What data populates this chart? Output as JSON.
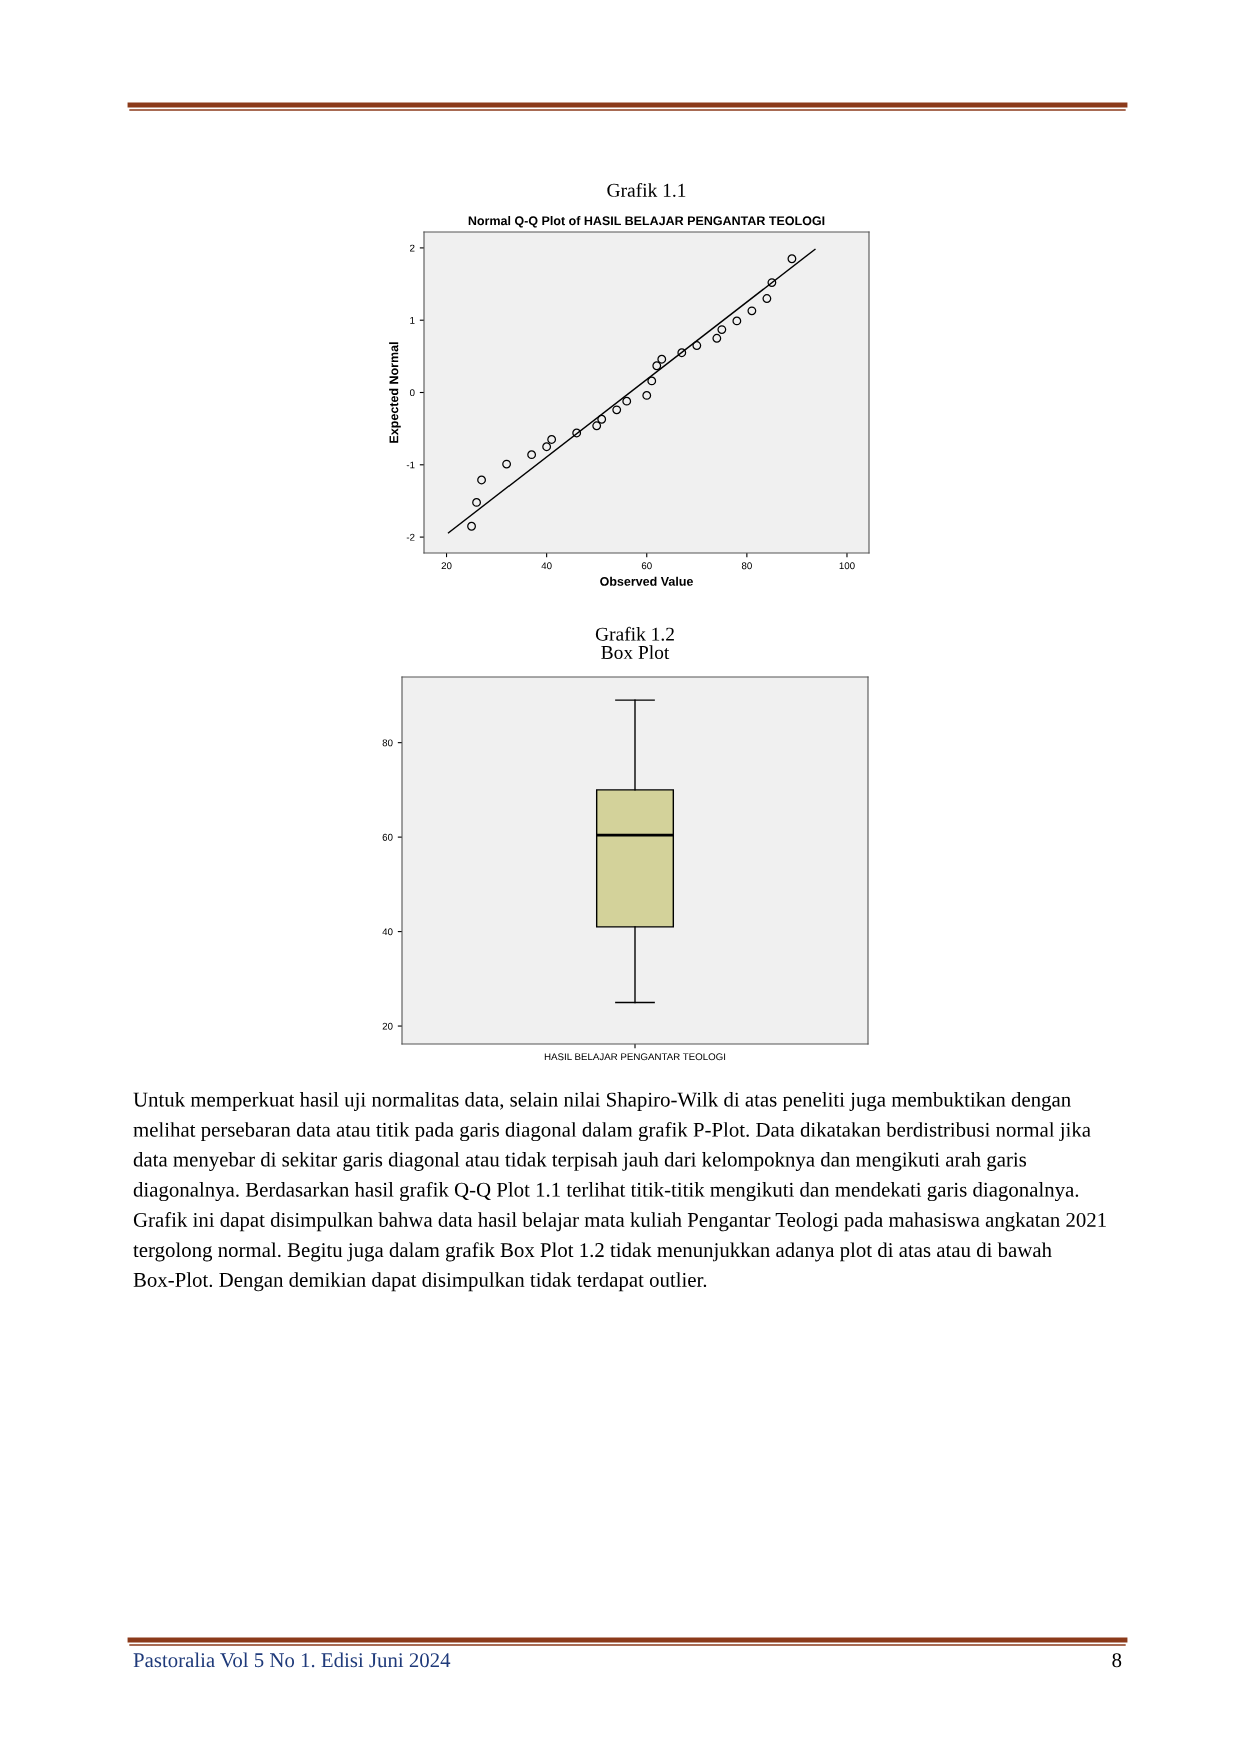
{
  "chart_data": [
    {
      "type": "scatter",
      "title": "Grafik 1.1",
      "subtitle": "Normal Q-Q Plot of HASIL BELAJAR PENGANTAR TEOLOGI",
      "xlabel": "Observed Value",
      "ylabel": "Expected Normal",
      "xlim": [
        15.5,
        104.4
      ],
      "ylim": [
        -2.22,
        2.22
      ],
      "xticks": [
        20,
        40,
        60,
        80,
        100
      ],
      "yticks": [
        -2,
        -1,
        0,
        1,
        2
      ],
      "series": [
        {
          "type": "scatter",
          "marker": "circle",
          "color": "#000000",
          "x": [
            25,
            26,
            27,
            32,
            37,
            40,
            41,
            46,
            50,
            51,
            54,
            56,
            60,
            61,
            62,
            63,
            67,
            70,
            74,
            75,
            78,
            81,
            84,
            85,
            89
          ],
          "values": [
            -1.85,
            -1.52,
            -1.21,
            -0.99,
            -0.86,
            -0.75,
            -0.65,
            -0.56,
            -0.46,
            -0.37,
            -0.24,
            -0.12,
            -0.04,
            0.16,
            0.37,
            0.46,
            0.55,
            0.65,
            0.75,
            0.87,
            0.99,
            1.13,
            1.3,
            1.52,
            1.85
          ]
        },
        {
          "type": "line",
          "color": "#000000",
          "x": [
            20.4,
            93.6
          ],
          "values": [
            -1.94,
            1.98
          ]
        }
      ]
    },
    {
      "type": "box",
      "title": "Grafik 1.2",
      "subtitle": "Box Plot",
      "categories": [
        "HASIL BELAJAR PENGANTAR TEOLOGI"
      ],
      "colors": [
        "#d3d29a"
      ],
      "ylim": [
        16.2,
        93.9
      ],
      "yticks": [
        20,
        40,
        60,
        80
      ],
      "boxes": [
        {
          "low": 25,
          "q1": 41,
          "median": 60.4,
          "q3": 70,
          "high": 89
        }
      ],
      "annotations": [
        "Untuk memperkuat hasil uji normalitas data, selain nilai Shapiro-Wilk di atas peneliti juga membuktikan dengan melihat persebaran data atau titik pada garis diagonal dalam grafik P-Plot. Data dikatakan berdistribusi normal jika data menyebar di sekitar garis diagonal atau tidak terpisah jauh dari kelompoknya dan mengikuti arah garis diagonalnya. Berdasarkan hasil grafik Q-Q Plot 1.1 terlihat titik-titik mengikuti dan mendekati garis diagonalnya. Grafik ini dapat disimpulkan bahwa data hasil belajar mata kuliah Pengantar Teologi pada mahasiswa angkatan 2021 tergolong normal. Begitu juga dalam grafik Box Plot 1.2 tidak menunjukkan adanya plot di atas atau di bawah Box-Plot. Dengan demikian dapat disimpulkan tidak terdapat outlier.",
        "Pastoralia Vol 5 No 1. Edisi Juni 2024",
        "8"
      ]
    }
  ]
}
